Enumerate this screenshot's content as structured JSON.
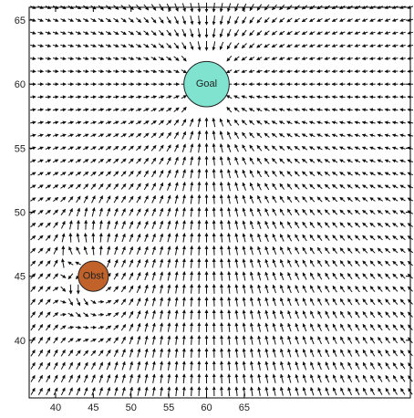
{
  "chart_data": {
    "type": "vector-field",
    "title": "",
    "xlabel": "",
    "ylabel": "",
    "xlim": [
      36.5,
      87
    ],
    "ylim": [
      35.5,
      66
    ],
    "x_ticks": [
      40,
      45,
      50,
      55,
      60,
      65
    ],
    "y_ticks": [
      40,
      45,
      50,
      55,
      60,
      65
    ],
    "x_tick_labels": [
      "40",
      "45",
      "50",
      "55",
      "60",
      "65"
    ],
    "y_tick_labels": [
      "40",
      "45",
      "50",
      "55",
      "60",
      "65"
    ],
    "grid_spacing": 1,
    "goal": {
      "label": "Goal",
      "x": 60,
      "y": 60,
      "radius": 3,
      "color": "#7fe3cf"
    },
    "obstacle": {
      "label": "Obst",
      "x": 45,
      "y": 45,
      "radius": 2,
      "color": "#c0622a"
    },
    "grid": false,
    "legend": "none"
  }
}
